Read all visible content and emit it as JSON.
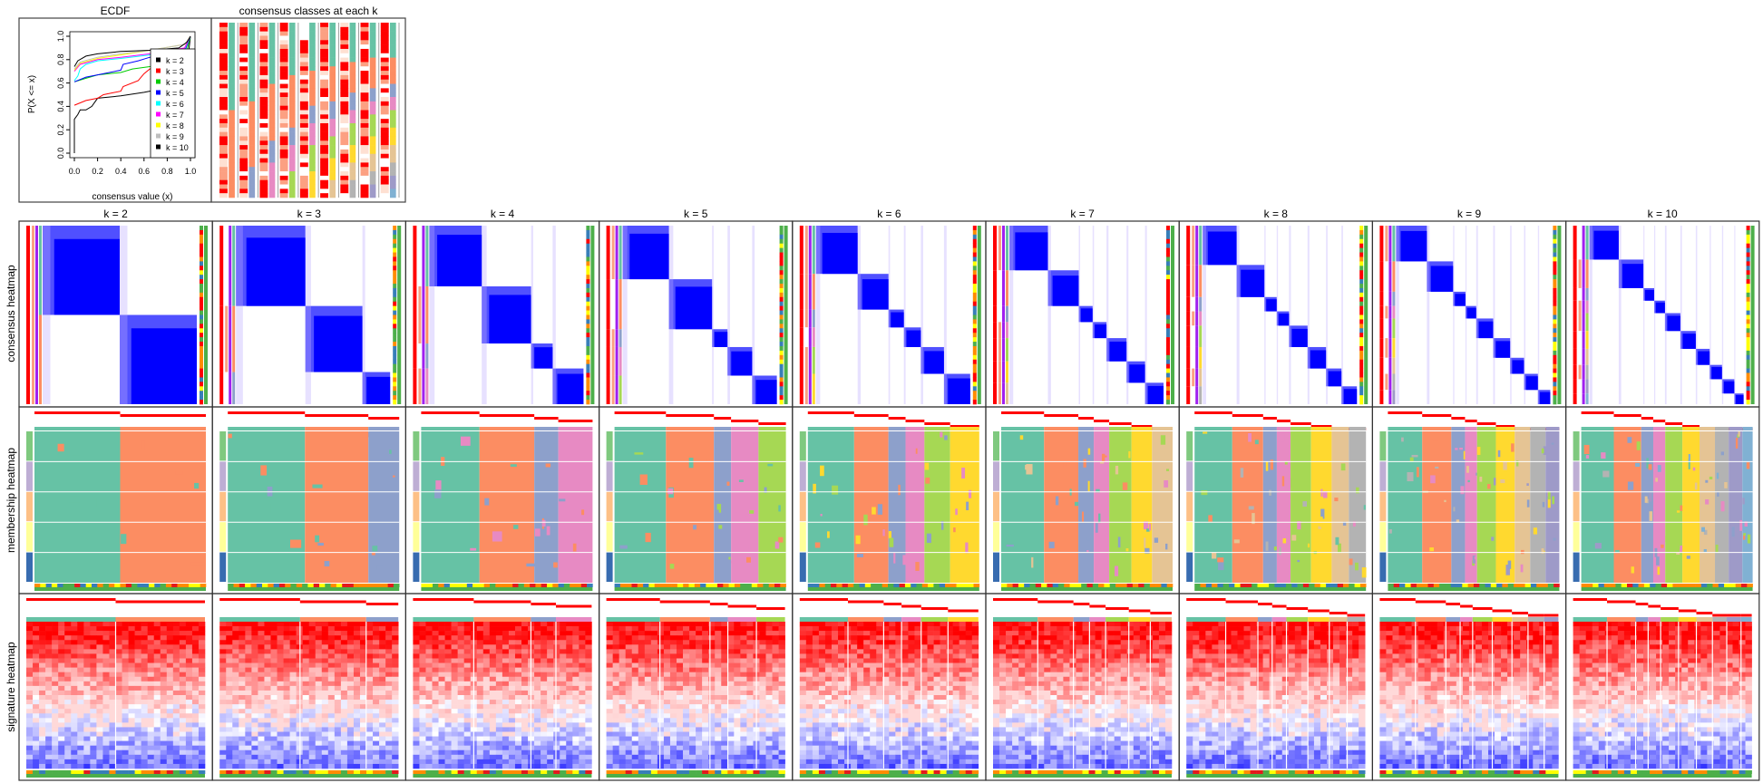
{
  "row_labels": {
    "consensus": "consensus heatmap",
    "membership": "membership heatmap",
    "signature": "signature heatmap"
  },
  "column_labels": [
    "k = 2",
    "k = 3",
    "k = 4",
    "k = 5",
    "k = 6",
    "k = 7",
    "k = 8",
    "k = 9",
    "k = 10"
  ],
  "class_colors": [
    "#66C2A5",
    "#FC8D62",
    "#8DA0CB",
    "#E78AC3",
    "#A6D854",
    "#FFD92F",
    "#E5C494",
    "#B3B3B3",
    "#9E9AC8",
    "#80B1D3"
  ],
  "annotation_colors": [
    "#7FC97F",
    "#BEAED4",
    "#FDC086",
    "#FFFF99",
    "#386CB0"
  ],
  "consensus_color": "#0000FF",
  "chart_data": [
    {
      "type": "line",
      "title": "ECDF",
      "xlabel": "consensus value (x)",
      "ylabel": "P(X <= x)",
      "xlim": [
        0,
        1
      ],
      "ylim": [
        0,
        1
      ],
      "xticks": [
        "0.0",
        "0.2",
        "0.4",
        "0.6",
        "0.8",
        "1.0"
      ],
      "yticks": [
        "0.0",
        "0.2",
        "0.4",
        "0.6",
        "0.8",
        "1.0"
      ],
      "legend_position": "bottom-right",
      "series": [
        {
          "name": "k = 2",
          "color": "#000000",
          "points": [
            [
              0,
              0
            ],
            [
              0,
              0.29
            ],
            [
              0.03,
              0.33
            ],
            [
              0.05,
              0.37
            ],
            [
              0.1,
              0.37
            ],
            [
              0.15,
              0.4
            ],
            [
              0.2,
              0.47
            ],
            [
              0.4,
              0.49
            ],
            [
              0.6,
              0.52
            ],
            [
              0.65,
              0.53
            ],
            [
              0.95,
              0.56
            ],
            [
              1,
              1
            ]
          ]
        },
        {
          "name": "k = 3",
          "color": "#FF0000",
          "points": [
            [
              0,
              0.41
            ],
            [
              0.05,
              0.43
            ],
            [
              0.1,
              0.45
            ],
            [
              0.2,
              0.47
            ],
            [
              0.25,
              0.5
            ],
            [
              0.4,
              0.53
            ],
            [
              0.42,
              0.57
            ],
            [
              0.55,
              0.62
            ],
            [
              0.6,
              0.68
            ],
            [
              0.65,
              0.72
            ],
            [
              0.9,
              0.8
            ],
            [
              1,
              1
            ]
          ]
        },
        {
          "name": "k = 4",
          "color": "#00CC00",
          "points": [
            [
              0,
              0.61
            ],
            [
              0.1,
              0.64
            ],
            [
              0.2,
              0.67
            ],
            [
              0.4,
              0.69
            ],
            [
              0.5,
              0.72
            ],
            [
              0.65,
              0.74
            ],
            [
              0.95,
              0.8
            ],
            [
              1,
              1
            ]
          ]
        },
        {
          "name": "k = 5",
          "color": "#0000FF",
          "points": [
            [
              0,
              0.61
            ],
            [
              0.1,
              0.65
            ],
            [
              0.2,
              0.67
            ],
            [
              0.4,
              0.71
            ],
            [
              0.42,
              0.76
            ],
            [
              0.55,
              0.79
            ],
            [
              0.65,
              0.82
            ],
            [
              0.95,
              0.87
            ],
            [
              1,
              1
            ]
          ]
        },
        {
          "name": "k = 6",
          "color": "#00FFFF",
          "points": [
            [
              0,
              0.62
            ],
            [
              0.03,
              0.66
            ],
            [
              0.05,
              0.72
            ],
            [
              0.1,
              0.76
            ],
            [
              0.2,
              0.79
            ],
            [
              0.4,
              0.81
            ],
            [
              0.65,
              0.84
            ],
            [
              0.95,
              0.89
            ],
            [
              1,
              1
            ]
          ]
        },
        {
          "name": "k = 7",
          "color": "#FF00FF",
          "points": [
            [
              0,
              0.7
            ],
            [
              0.05,
              0.76
            ],
            [
              0.2,
              0.8
            ],
            [
              0.4,
              0.82
            ],
            [
              0.65,
              0.85
            ],
            [
              0.95,
              0.9
            ],
            [
              1,
              1
            ]
          ]
        },
        {
          "name": "k = 8",
          "color": "#FFFF00",
          "points": [
            [
              0,
              0.71
            ],
            [
              0.05,
              0.77
            ],
            [
              0.2,
              0.81
            ],
            [
              0.4,
              0.84
            ],
            [
              0.65,
              0.88
            ],
            [
              0.95,
              0.93
            ],
            [
              1,
              1
            ]
          ]
        },
        {
          "name": "k = 9",
          "color": "#BEBEBE",
          "points": [
            [
              0,
              0.72
            ],
            [
              0.05,
              0.78
            ],
            [
              0.2,
              0.82
            ],
            [
              0.4,
              0.85
            ],
            [
              0.65,
              0.88
            ],
            [
              0.95,
              0.93
            ],
            [
              1,
              1
            ]
          ]
        },
        {
          "name": "k = 10",
          "color": "#000000",
          "points": [
            [
              0,
              0.74
            ],
            [
              0.03,
              0.79
            ],
            [
              0.1,
              0.83
            ],
            [
              0.2,
              0.85
            ],
            [
              0.4,
              0.87
            ],
            [
              0.65,
              0.88
            ],
            [
              0.9,
              0.9
            ],
            [
              0.97,
              0.95
            ],
            [
              1,
              1
            ]
          ]
        }
      ]
    },
    {
      "type": "heatmap",
      "title": "consensus classes at each k",
      "k": [
        2,
        3,
        4,
        5,
        6,
        7,
        8,
        9,
        10
      ],
      "class_fractions": [
        [
          0.5,
          0.5
        ],
        [
          0.45,
          0.37,
          0.18
        ],
        [
          0.34,
          0.32,
          0.14,
          0.2
        ],
        [
          0.3,
          0.28,
          0.1,
          0.16,
          0.16
        ],
        [
          0.27,
          0.2,
          0.1,
          0.11,
          0.15,
          0.17
        ],
        [
          0.25,
          0.2,
          0.09,
          0.09,
          0.13,
          0.12,
          0.12
        ],
        [
          0.22,
          0.18,
          0.08,
          0.08,
          0.12,
          0.12,
          0.1,
          0.1
        ],
        [
          0.2,
          0.17,
          0.08,
          0.07,
          0.11,
          0.11,
          0.09,
          0.09,
          0.08
        ],
        [
          0.19,
          0.16,
          0.07,
          0.07,
          0.1,
          0.1,
          0.09,
          0.08,
          0.08,
          0.06
        ]
      ]
    }
  ]
}
